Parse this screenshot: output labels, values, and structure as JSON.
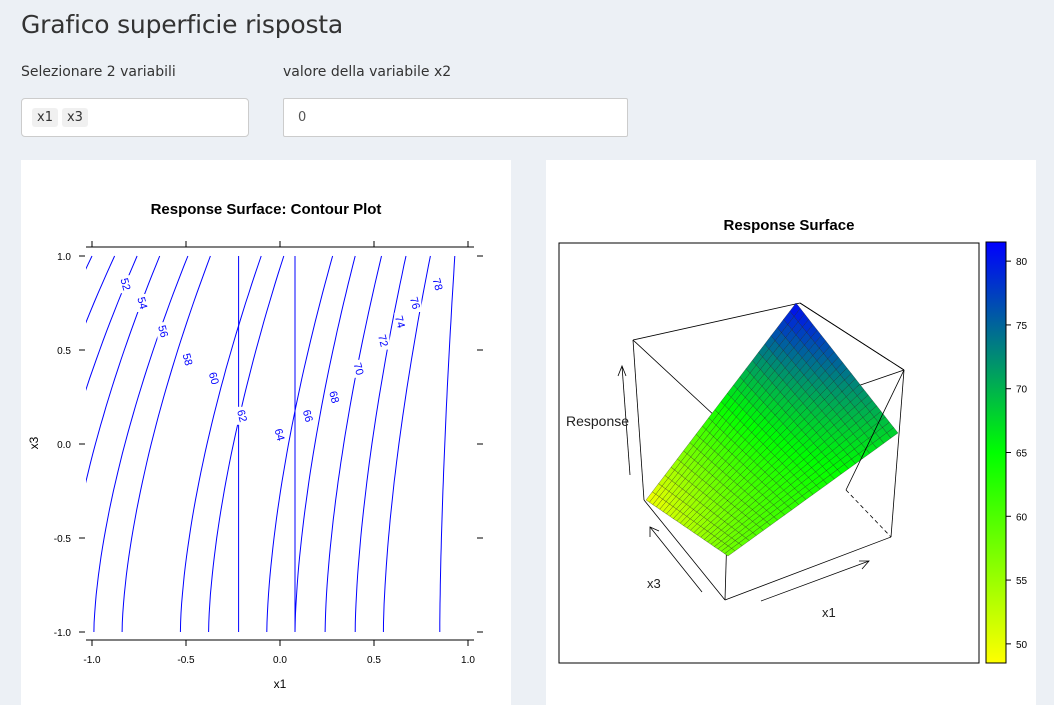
{
  "page": {
    "title": "Grafico superficie risposta"
  },
  "controls": {
    "variables_label": "Selezionare 2 variabili",
    "selected_variables": [
      "x1",
      "x3"
    ],
    "fixed_value_label": "valore della variabile x2",
    "fixed_value": "0"
  },
  "chart_data": [
    {
      "type": "contour",
      "title": "Response Surface: Contour Plot",
      "xlabel": "x1",
      "ylabel": "x3",
      "xlim": [
        -1.0,
        1.0
      ],
      "ylim": [
        -1.0,
        1.0
      ],
      "x_ticks": [
        "-1.0",
        "-0.5",
        "0.0",
        "0.5",
        "1.0"
      ],
      "y_ticks": [
        "-1.0",
        "-0.5",
        "0.0",
        "0.5",
        "1.0"
      ],
      "line_color": "#0000ff",
      "levels": [
        {
          "label": "52",
          "bottom": -1.6,
          "top": -1.0,
          "pos": [
            -0.82,
            0.85
          ]
        },
        {
          "label": "54",
          "bottom": -1.45,
          "top": -0.88,
          "pos": [
            -0.73,
            0.75
          ]
        },
        {
          "label": "56",
          "bottom": -1.3,
          "top": -0.76,
          "pos": [
            -0.62,
            0.6
          ]
        },
        {
          "label": "58",
          "bottom": -1.15,
          "top": -0.64,
          "pos": [
            -0.49,
            0.45
          ]
        },
        {
          "label": "60",
          "bottom": -0.99,
          "top": -0.49,
          "pos": [
            -0.35,
            0.35
          ]
        },
        {
          "label": "62",
          "bottom": -0.84,
          "top": -0.37,
          "pos": [
            -0.2,
            0.15
          ]
        },
        {
          "label": "",
          "bottom": -0.22,
          "top": -0.22,
          "pos": null
        },
        {
          "label": "64",
          "bottom": -0.53,
          "top": -0.1,
          "pos": [
            0.0,
            0.05
          ]
        },
        {
          "label": "66",
          "bottom": -0.38,
          "top": 0.02,
          "pos": [
            0.15,
            0.15
          ]
        },
        {
          "label": "",
          "bottom": 0.08,
          "top": 0.08,
          "pos": null
        },
        {
          "label": "68",
          "bottom": -0.07,
          "top": 0.28,
          "pos": [
            0.29,
            0.25
          ]
        },
        {
          "label": "70",
          "bottom": 0.08,
          "top": 0.4,
          "pos": [
            0.42,
            0.4
          ]
        },
        {
          "label": "72",
          "bottom": 0.24,
          "top": 0.54,
          "pos": [
            0.55,
            0.55
          ]
        },
        {
          "label": "74",
          "bottom": 0.4,
          "top": 0.67,
          "pos": [
            0.64,
            0.65
          ]
        },
        {
          "label": "76",
          "bottom": 0.55,
          "top": 0.8,
          "pos": [
            0.72,
            0.75
          ]
        },
        {
          "label": "78",
          "bottom": 0.85,
          "top": 0.93,
          "pos": [
            0.84,
            0.85
          ]
        }
      ]
    },
    {
      "type": "surface",
      "title": "Response Surface",
      "xlabel": "x1",
      "ylabel": "x3",
      "zlabel": "Response",
      "zlim": [
        48.5,
        81.5
      ],
      "colorbar_ticks": [
        "50",
        "55",
        "60",
        "65",
        "70",
        "75",
        "80"
      ],
      "colorbar_values": [
        50,
        55,
        60,
        65,
        70,
        75,
        80
      ],
      "colorscale": [
        "#ffff00",
        "#00ff00",
        "#0000ff"
      ]
    }
  ]
}
